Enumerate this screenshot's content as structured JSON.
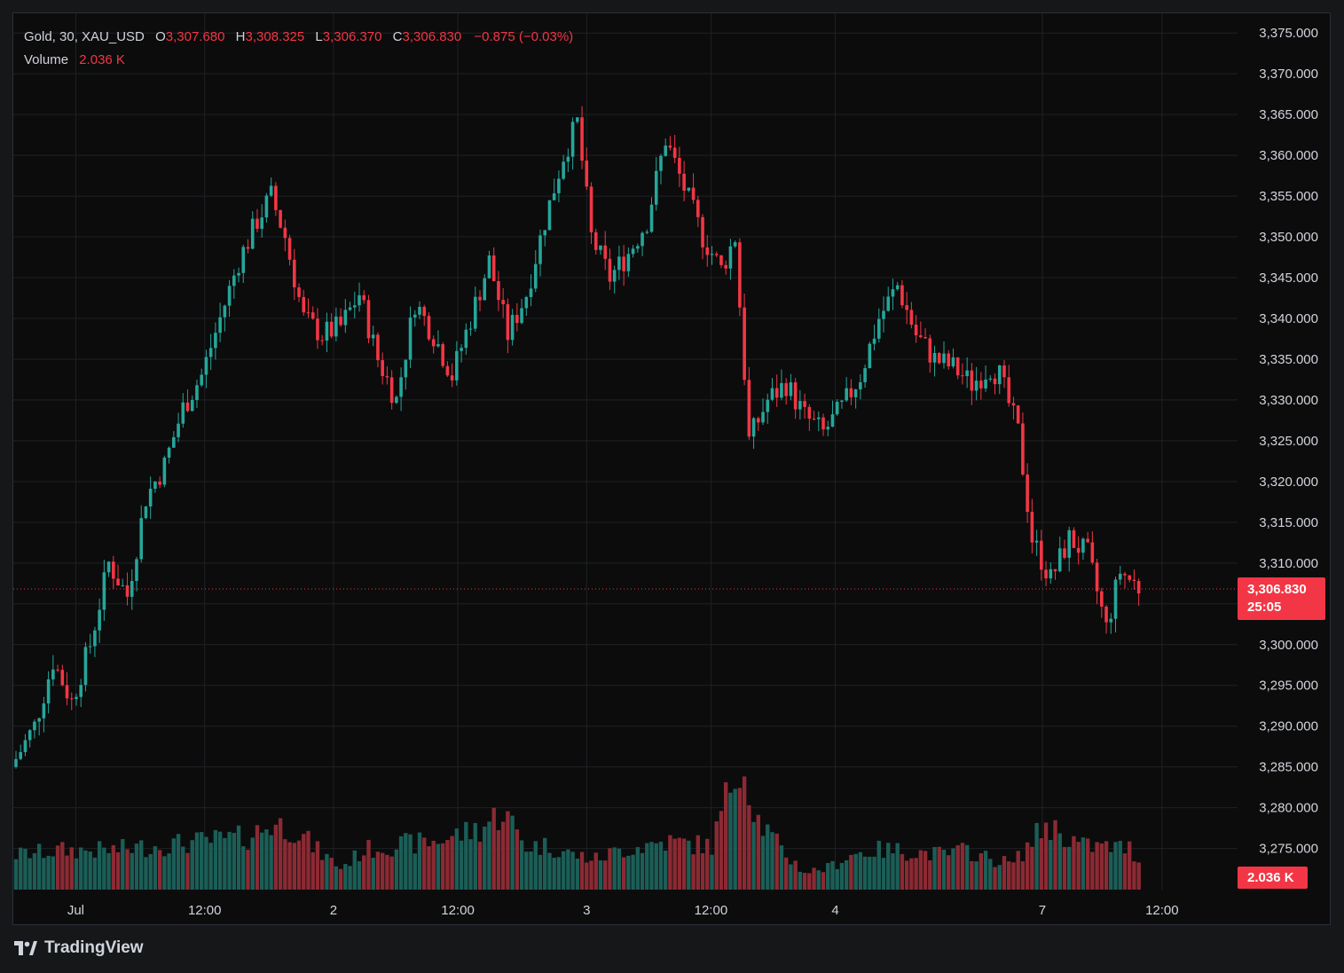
{
  "legend": {
    "symbol": "Gold, 30, XAU_USD",
    "open_label": "O",
    "open": "3,307.680",
    "high_label": "H",
    "high": "3,308.325",
    "low_label": "L",
    "low": "3,306.370",
    "close_label": "C",
    "close": "3,306.830",
    "change": "−0.875 (−0.03%)",
    "volume_label": "Volume",
    "volume": "2.036 K"
  },
  "price_tag": {
    "price": "3,306.830",
    "countdown": "25:05"
  },
  "volume_tag": {
    "value": "2.036 K"
  },
  "branding": {
    "name": "TradingView",
    "icon": "tradingview-logo-icon"
  },
  "colors": {
    "up": "#26a69a",
    "down": "#f23645",
    "vol_up": "#1b5e57",
    "vol_down": "#8b2a33",
    "background": "#0c0c0c",
    "grid": "#1e2125"
  },
  "chart_data": {
    "type": "candlestick",
    "timeframe": "30",
    "x_ticks": [
      "Jul",
      "12:00",
      "2",
      "12:00",
      "3",
      "12:00",
      "4",
      "7",
      "12:00"
    ],
    "y_ticks": [
      "3,375.000",
      "3,370.000",
      "3,365.000",
      "3,360.000",
      "3,355.000",
      "3,350.000",
      "3,345.000",
      "3,340.000",
      "3,335.000",
      "3,330.000",
      "3,325.000",
      "3,320.000",
      "3,315.000",
      "3,310.000",
      "3,305.000",
      "3,300.000",
      "3,295.000",
      "3,290.000",
      "3,285.000",
      "3,280.000",
      "3,275.000"
    ],
    "ylim": [
      3273,
      3376
    ],
    "grid": true,
    "current_price": 3306.83,
    "close_path": [
      [
        0,
        3286
      ],
      [
        4,
        3290
      ],
      [
        8,
        3298
      ],
      [
        12,
        3293
      ],
      [
        16,
        3300
      ],
      [
        20,
        3310
      ],
      [
        24,
        3306
      ],
      [
        28,
        3318
      ],
      [
        32,
        3322
      ],
      [
        36,
        3329
      ],
      [
        40,
        3333
      ],
      [
        44,
        3340
      ],
      [
        48,
        3347
      ],
      [
        52,
        3352
      ],
      [
        55,
        3355
      ],
      [
        58,
        3350
      ],
      [
        62,
        3340
      ],
      [
        66,
        3338
      ],
      [
        70,
        3339
      ],
      [
        74,
        3343
      ],
      [
        78,
        3335
      ],
      [
        82,
        3330
      ],
      [
        86,
        3342
      ],
      [
        90,
        3338
      ],
      [
        94,
        3333
      ],
      [
        98,
        3340
      ],
      [
        102,
        3347
      ],
      [
        106,
        3338
      ],
      [
        110,
        3343
      ],
      [
        114,
        3352
      ],
      [
        118,
        3360
      ],
      [
        121,
        3364
      ],
      [
        124,
        3350
      ],
      [
        128,
        3345
      ],
      [
        132,
        3348
      ],
      [
        136,
        3352
      ],
      [
        140,
        3362
      ],
      [
        144,
        3356
      ],
      [
        148,
        3350
      ],
      [
        152,
        3346
      ],
      [
        155,
        3350
      ],
      [
        158,
        3325
      ],
      [
        162,
        3330
      ],
      [
        166,
        3332
      ],
      [
        170,
        3328
      ],
      [
        174,
        3326
      ],
      [
        178,
        3329
      ],
      [
        182,
        3333
      ],
      [
        186,
        3340
      ],
      [
        190,
        3344
      ],
      [
        194,
        3338
      ],
      [
        198,
        3335
      ],
      [
        202,
        3334
      ],
      [
        206,
        3332
      ],
      [
        210,
        3334
      ],
      [
        212,
        3333
      ],
      [
        216,
        3326
      ],
      [
        219,
        3313
      ],
      [
        223,
        3308
      ],
      [
        227,
        3313
      ],
      [
        231,
        3311
      ],
      [
        235,
        3302
      ],
      [
        238,
        3309
      ],
      [
        242,
        3307
      ]
    ],
    "volume_path": [
      [
        0,
        16
      ],
      [
        10,
        18
      ],
      [
        20,
        18
      ],
      [
        30,
        20
      ],
      [
        40,
        22
      ],
      [
        50,
        24
      ],
      [
        55,
        30
      ],
      [
        60,
        28
      ],
      [
        65,
        18
      ],
      [
        70,
        10
      ],
      [
        75,
        18
      ],
      [
        80,
        20
      ],
      [
        90,
        22
      ],
      [
        100,
        28
      ],
      [
        105,
        36
      ],
      [
        110,
        20
      ],
      [
        115,
        20
      ],
      [
        120,
        16
      ],
      [
        125,
        14
      ],
      [
        130,
        18
      ],
      [
        140,
        22
      ],
      [
        150,
        20
      ],
      [
        156,
        62
      ],
      [
        160,
        32
      ],
      [
        165,
        18
      ],
      [
        170,
        8
      ],
      [
        175,
        10
      ],
      [
        180,
        16
      ],
      [
        185,
        18
      ],
      [
        190,
        18
      ],
      [
        200,
        16
      ],
      [
        205,
        18
      ],
      [
        210,
        14
      ],
      [
        215,
        12
      ],
      [
        222,
        30
      ],
      [
        230,
        20
      ],
      [
        240,
        19
      ],
      [
        242,
        14
      ]
    ],
    "volume_max": 100,
    "volume_ylim": [
      0,
      100
    ],
    "num_candles": 243
  }
}
